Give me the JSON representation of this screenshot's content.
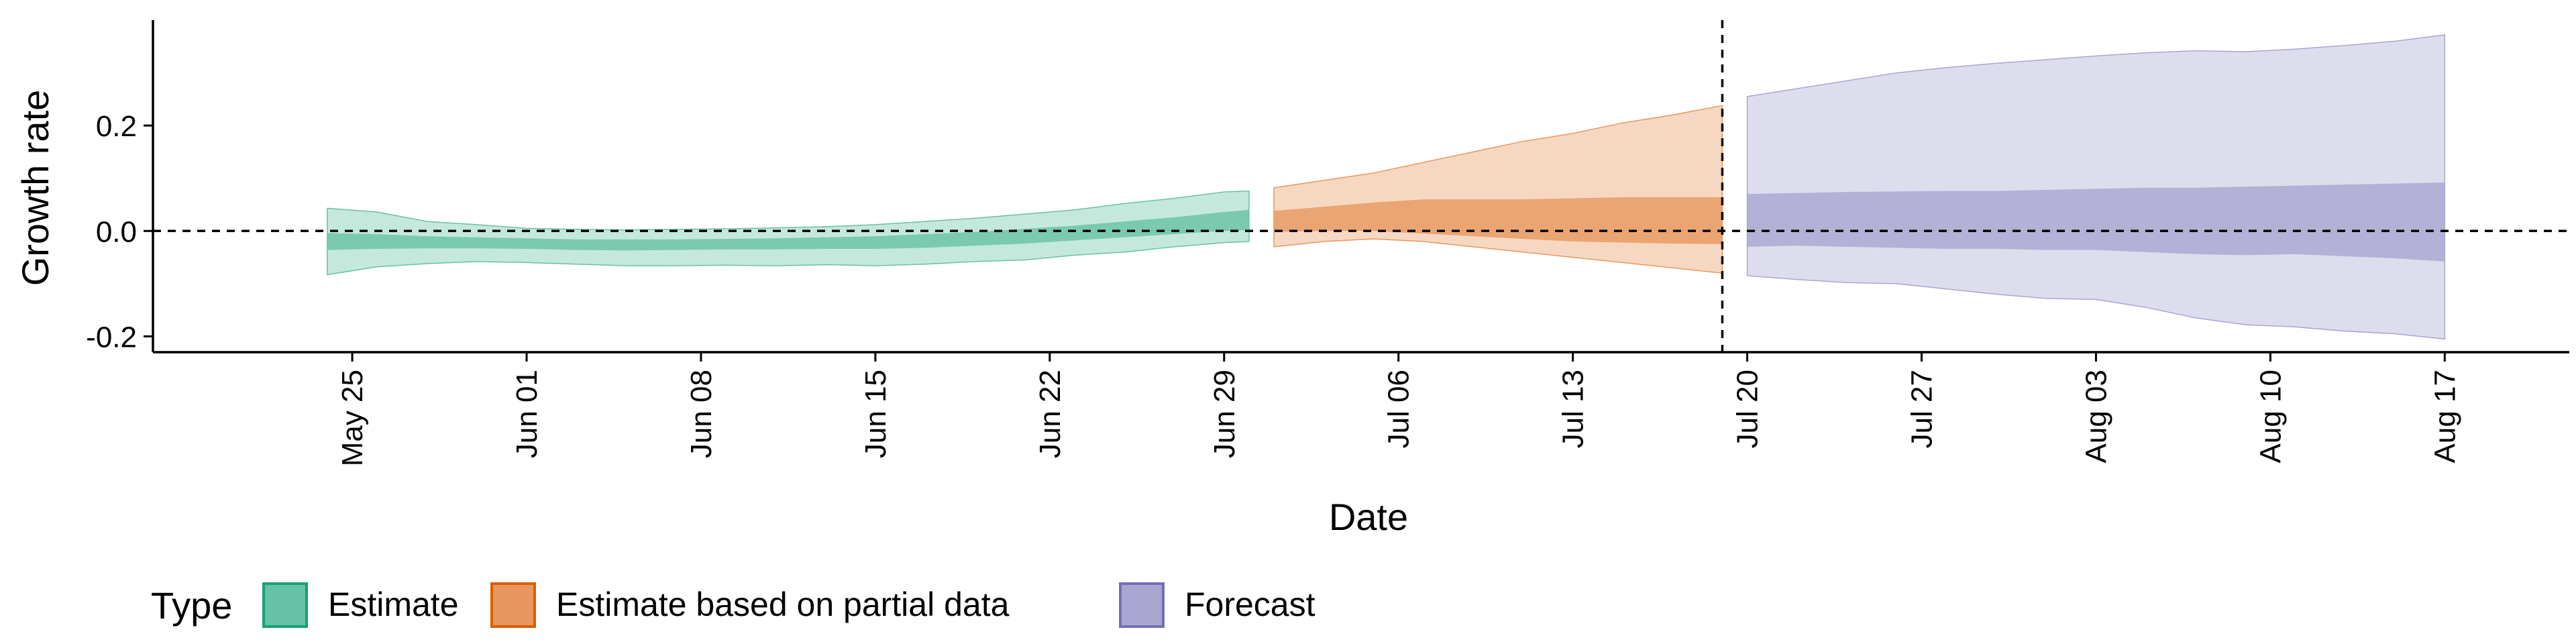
{
  "chart_data": {
    "type": "area",
    "xlabel": "Date",
    "ylabel": "Growth rate",
    "ylim": [
      -0.23,
      0.4
    ],
    "xlim": [
      "2020-05-17",
      "2020-08-22"
    ],
    "x_ticks": [
      "2020-05-25",
      "2020-06-01",
      "2020-06-08",
      "2020-06-15",
      "2020-06-22",
      "2020-06-29",
      "2020-07-06",
      "2020-07-13",
      "2020-07-20",
      "2020-07-27",
      "2020-08-03",
      "2020-08-10",
      "2020-08-17"
    ],
    "x_tick_labels": [
      "May 25",
      "Jun 01",
      "Jun 08",
      "Jun 15",
      "Jun 22",
      "Jun 29",
      "Jul 06",
      "Jul 13",
      "Jul 20",
      "Jul 27",
      "Aug 03",
      "Aug 10",
      "Aug 17"
    ],
    "y_ticks": [
      -0.2,
      0.0,
      0.2
    ],
    "y_tick_labels": [
      "-0.2",
      "0.0",
      "0.2"
    ],
    "hline_y": 0,
    "vline_date": "2020-07-19",
    "grid": false,
    "legend": {
      "title": "Type",
      "position": "bottom",
      "entries": [
        {
          "label": "Estimate",
          "fill": "#66C2A5",
          "stroke": "#1B9E77"
        },
        {
          "label": "Estimate based on partial data",
          "fill": "#E8985E",
          "stroke": "#D95F02"
        },
        {
          "label": "Forecast",
          "fill": "#A9A6D1",
          "stroke": "#7570B3"
        }
      ]
    },
    "series": [
      {
        "type": "Estimate",
        "color": "#66C2A5",
        "x": [
          "2020-05-24",
          "2020-05-26",
          "2020-05-28",
          "2020-05-30",
          "2020-06-01",
          "2020-06-03",
          "2020-06-05",
          "2020-06-07",
          "2020-06-09",
          "2020-06-11",
          "2020-06-13",
          "2020-06-15",
          "2020-06-17",
          "2020-06-19",
          "2020-06-21",
          "2020-06-23",
          "2020-06-25",
          "2020-06-27",
          "2020-06-29",
          "2020-06-30"
        ],
        "outer_lower": [
          -0.083,
          -0.068,
          -0.062,
          -0.058,
          -0.06,
          -0.063,
          -0.066,
          -0.066,
          -0.065,
          -0.066,
          -0.064,
          -0.066,
          -0.063,
          -0.058,
          -0.055,
          -0.046,
          -0.04,
          -0.03,
          -0.022,
          -0.02
        ],
        "outer_upper": [
          0.043,
          0.036,
          0.018,
          0.012,
          0.005,
          0.003,
          0.002,
          0.003,
          0.004,
          0.006,
          0.008,
          0.012,
          0.018,
          0.024,
          0.032,
          0.04,
          0.052,
          0.062,
          0.074,
          0.076
        ],
        "inner_lower": [
          -0.036,
          -0.034,
          -0.033,
          -0.033,
          -0.034,
          -0.036,
          -0.037,
          -0.036,
          -0.035,
          -0.035,
          -0.034,
          -0.034,
          -0.032,
          -0.028,
          -0.024,
          -0.018,
          -0.012,
          -0.006,
          0.0,
          0.002
        ],
        "inner_upper": [
          -0.004,
          -0.006,
          -0.01,
          -0.012,
          -0.014,
          -0.016,
          -0.016,
          -0.016,
          -0.015,
          -0.014,
          -0.012,
          -0.01,
          -0.006,
          -0.002,
          0.004,
          0.01,
          0.018,
          0.026,
          0.036,
          0.04
        ]
      },
      {
        "type": "Estimate based on partial data",
        "color": "#E8985E",
        "x": [
          "2020-07-01",
          "2020-07-03",
          "2020-07-05",
          "2020-07-07",
          "2020-07-09",
          "2020-07-11",
          "2020-07-13",
          "2020-07-15",
          "2020-07-17",
          "2020-07-19"
        ],
        "outer_lower": [
          -0.03,
          -0.02,
          -0.015,
          -0.02,
          -0.03,
          -0.04,
          -0.05,
          -0.06,
          -0.07,
          -0.08
        ],
        "outer_upper": [
          0.082,
          0.096,
          0.11,
          0.13,
          0.15,
          0.17,
          0.185,
          0.205,
          0.22,
          0.238
        ],
        "inner_lower": [
          -0.002,
          0.0,
          0.0,
          -0.005,
          -0.01,
          -0.015,
          -0.02,
          -0.022,
          -0.024,
          -0.025
        ],
        "inner_upper": [
          0.038,
          0.046,
          0.054,
          0.06,
          0.06,
          0.06,
          0.062,
          0.064,
          0.064,
          0.064
        ]
      },
      {
        "type": "Forecast",
        "color": "#A9A6D1",
        "x": [
          "2020-07-20",
          "2020-07-22",
          "2020-07-24",
          "2020-07-26",
          "2020-07-28",
          "2020-07-30",
          "2020-08-01",
          "2020-08-03",
          "2020-08-05",
          "2020-08-07",
          "2020-08-09",
          "2020-08-11",
          "2020-08-13",
          "2020-08-15",
          "2020-08-17"
        ],
        "outer_lower": [
          -0.085,
          -0.092,
          -0.098,
          -0.1,
          -0.11,
          -0.12,
          -0.128,
          -0.13,
          -0.145,
          -0.165,
          -0.178,
          -0.182,
          -0.19,
          -0.195,
          -0.205
        ],
        "outer_upper": [
          0.255,
          0.27,
          0.285,
          0.3,
          0.31,
          0.318,
          0.325,
          0.332,
          0.338,
          0.342,
          0.34,
          0.345,
          0.352,
          0.36,
          0.372
        ],
        "inner_lower": [
          -0.03,
          -0.028,
          -0.03,
          -0.032,
          -0.034,
          -0.034,
          -0.036,
          -0.036,
          -0.04,
          -0.044,
          -0.046,
          -0.044,
          -0.048,
          -0.052,
          -0.058
        ],
        "inner_upper": [
          0.07,
          0.072,
          0.074,
          0.075,
          0.076,
          0.076,
          0.078,
          0.08,
          0.082,
          0.082,
          0.084,
          0.086,
          0.088,
          0.09,
          0.092
        ]
      }
    ]
  }
}
